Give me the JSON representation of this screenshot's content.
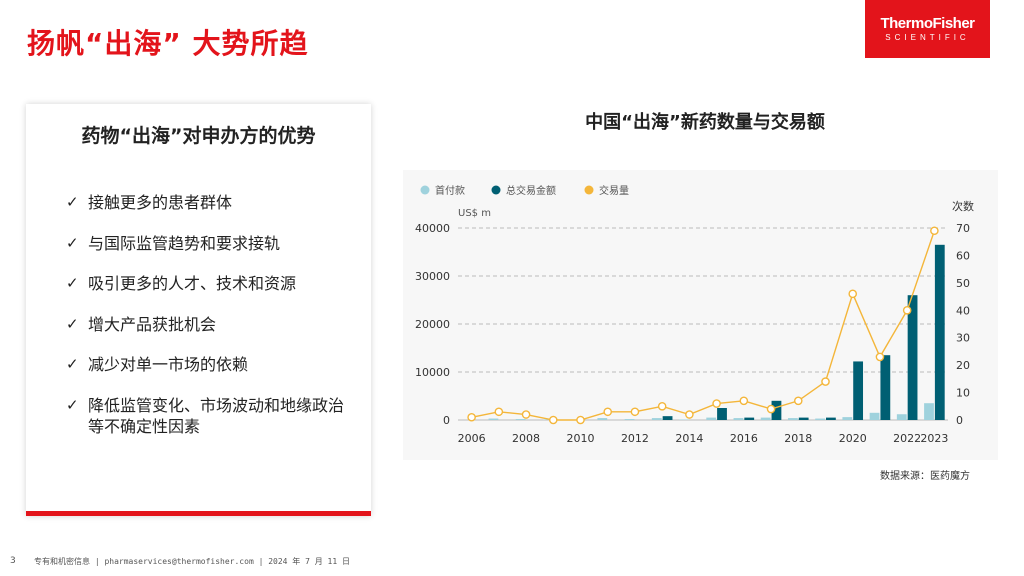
{
  "title": "扬帆“出海” 大势所趋",
  "logo": {
    "line1": "ThermoFisher",
    "line2": "SCIENTIFIC"
  },
  "card": {
    "heading": "药物“出海”对申办方的优势",
    "items": [
      "接触更多的患者群体",
      "与国际监管趋势和要求接轨",
      "吸引更多的人才、技术和资源",
      "增大产品获批机会",
      "减少对单一市场的依赖",
      "降低监管变化、市场波动和地缘政治等不确定性因素"
    ]
  },
  "check_icon": "✓",
  "chart_data": {
    "type": "bar+line",
    "title": "中国“出海”新药数量与交易额",
    "left_unit": "US$ m",
    "right_unit": "次数",
    "legend_position": "top-left",
    "x": [
      2006,
      2007,
      2008,
      2009,
      2010,
      2011,
      2012,
      2013,
      2014,
      2015,
      2016,
      2017,
      2018,
      2019,
      2020,
      2021,
      2022,
      2023
    ],
    "x_tick_labels": [
      "2006",
      "2008",
      "2010",
      "2012",
      "2014",
      "2016",
      "2018",
      "2020",
      "2022",
      "2023"
    ],
    "y_left_ticks": [
      "0",
      "10000",
      "20000",
      "30000",
      "40000"
    ],
    "y_right_ticks": [
      "0",
      "10",
      "20",
      "30",
      "40",
      "50",
      "60",
      "70"
    ],
    "ylim_left": [
      0,
      40000
    ],
    "ylim_right": [
      0,
      70
    ],
    "series": [
      {
        "name": "首付款",
        "kind": "bar",
        "color": "#9fd2dd",
        "values": [
          0,
          300,
          200,
          100,
          80,
          400,
          200,
          400,
          100,
          500,
          400,
          500,
          400,
          300,
          600,
          1500,
          1200,
          3500
        ]
      },
      {
        "name": "总交易金额",
        "kind": "bar",
        "color": "#005f73",
        "values": [
          0,
          0,
          0,
          0,
          0,
          0,
          0,
          800,
          0,
          2500,
          500,
          4000,
          500,
          500,
          12200,
          13500,
          26000,
          36500
        ]
      },
      {
        "name": "交易量",
        "kind": "line",
        "color": "#f4b63a",
        "values": [
          1,
          3,
          2,
          0,
          0,
          3,
          3,
          5,
          2,
          6,
          7,
          4,
          7,
          14,
          46,
          23,
          40,
          69
        ]
      }
    ]
  },
  "source": "数据来源：医药魔方",
  "footer": {
    "page": "3",
    "text": "专有和机密信息 | pharmaservices@thermofisher.com | 2024 年 7 月 11 日"
  }
}
